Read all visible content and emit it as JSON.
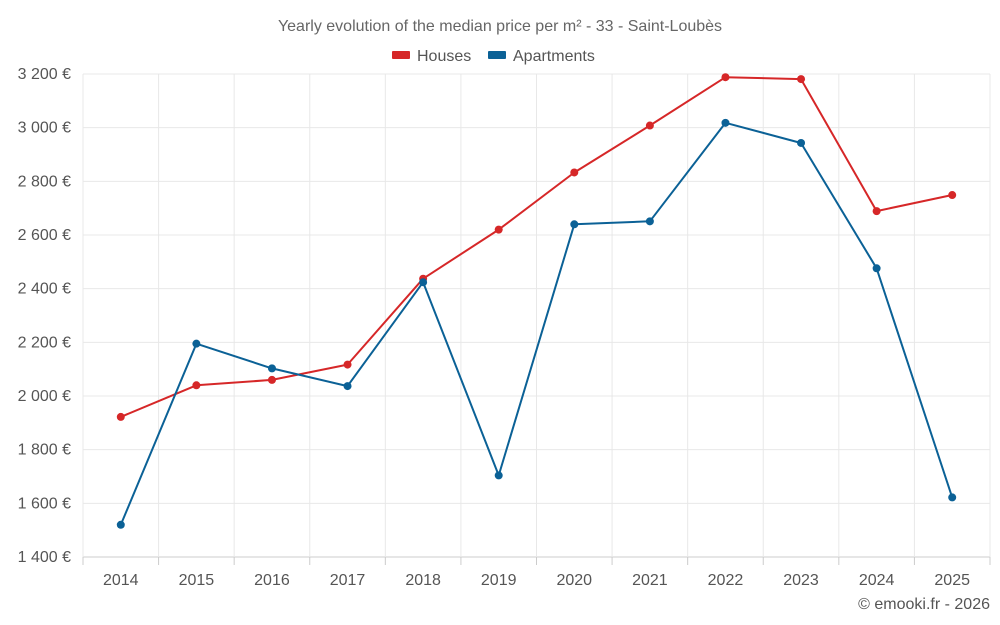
{
  "chart_data": {
    "type": "line",
    "title": "Yearly evolution of the median price per m² - 33 - Saint-Loubès",
    "categories": [
      "2014",
      "2015",
      "2016",
      "2017",
      "2018",
      "2019",
      "2020",
      "2021",
      "2022",
      "2023",
      "2024",
      "2025"
    ],
    "series": [
      {
        "name": "Houses",
        "color": "#d62728",
        "values": [
          1922,
          2040,
          2060,
          2117,
          2437,
          2620,
          2833,
          3008,
          3188,
          3181,
          2689,
          2749
        ]
      },
      {
        "name": "Apartments",
        "color": "#0b6196",
        "values": [
          1520,
          2195,
          2103,
          2037,
          2424,
          1704,
          2640,
          2651,
          3018,
          2943,
          2476,
          1622
        ]
      }
    ],
    "ylim": [
      1400,
      3200
    ],
    "yticks": [
      1400,
      1600,
      1800,
      2000,
      2200,
      2400,
      2600,
      2800,
      3000,
      3200
    ],
    "ytick_labels": [
      "1 400 €",
      "1 600 €",
      "1 800 €",
      "2 000 €",
      "2 200 €",
      "2 400 €",
      "2 600 €",
      "2 800 €",
      "3 000 €",
      "3 200 €"
    ],
    "xlabel": "",
    "ylabel": "",
    "grid": true,
    "legend_position": "top-center"
  },
  "credit": "© emooki.fr - 2026"
}
